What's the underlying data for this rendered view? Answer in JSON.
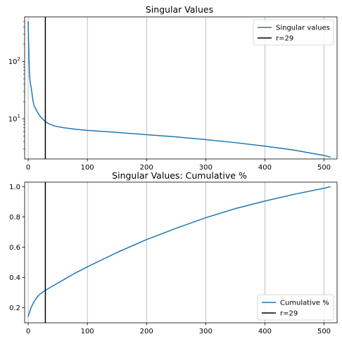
{
  "chart_data": [
    {
      "type": "line",
      "title": "Singular Values",
      "xlabel": "",
      "ylabel": "",
      "yscale": "log",
      "xlim": [
        -6,
        522
      ],
      "ylim": [
        2.0,
        600
      ],
      "xticks": [
        0,
        100,
        200,
        300,
        400,
        500
      ],
      "yticks": [
        10,
        100
      ],
      "ytick_labels": [
        "10^1",
        "10^2"
      ],
      "grid": "x",
      "legend_position": "upper right",
      "series": [
        {
          "name": "Singular values",
          "color": "#1f77b4",
          "x": [
            0,
            1,
            2,
            3,
            4,
            5,
            6,
            7,
            8,
            10,
            12,
            15,
            18,
            22,
            26,
            29,
            35,
            45,
            60,
            80,
            100,
            150,
            200,
            250,
            300,
            350,
            400,
            450,
            480,
            500,
            511
          ],
          "y": [
            500,
            160,
            65,
            48,
            40,
            36,
            30,
            25,
            21,
            17,
            15.5,
            13.5,
            12,
            10.5,
            9.6,
            9.0,
            8.2,
            7.5,
            7.0,
            6.6,
            6.3,
            5.8,
            5.3,
            4.85,
            4.35,
            3.85,
            3.35,
            2.85,
            2.5,
            2.3,
            2.15
          ]
        },
        {
          "name": "r=29",
          "color": "#000000",
          "type": "vline",
          "x": 29
        }
      ]
    },
    {
      "type": "line",
      "title": "Singular Values: Cumulative %",
      "xlabel": "",
      "ylabel": "",
      "xlim": [
        -6,
        522
      ],
      "ylim": [
        0.1,
        1.03
      ],
      "xticks": [
        0,
        100,
        200,
        300,
        400,
        500
      ],
      "yticks": [
        0.2,
        0.4,
        0.6,
        0.8,
        1.0
      ],
      "ytick_labels": [
        "0.2",
        "0.4",
        "0.6",
        "0.8",
        "1.0"
      ],
      "grid": "x",
      "legend_position": "lower right",
      "series": [
        {
          "name": "Cumulative %",
          "color": "#1f77b4",
          "x": [
            0,
            3,
            6,
            10,
            15,
            20,
            29,
            40,
            60,
            80,
            100,
            150,
            200,
            250,
            300,
            350,
            400,
            450,
            500,
            511
          ],
          "y": [
            0.14,
            0.18,
            0.21,
            0.24,
            0.27,
            0.29,
            0.315,
            0.34,
            0.385,
            0.43,
            0.47,
            0.565,
            0.65,
            0.725,
            0.795,
            0.855,
            0.905,
            0.95,
            0.99,
            1.0
          ]
        },
        {
          "name": "r=29",
          "color": "#000000",
          "type": "vline",
          "x": 29
        }
      ]
    }
  ]
}
